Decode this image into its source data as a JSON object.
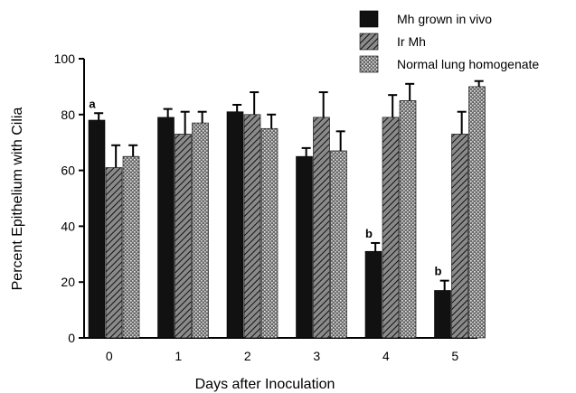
{
  "chart_data": {
    "type": "bar",
    "xlabel": "Days after Inoculation",
    "ylabel": "Percent Epithelium with Cilia",
    "ylim": [
      0,
      100
    ],
    "yticks": [
      "0",
      "20",
      "40",
      "60",
      "80",
      "100"
    ],
    "categories": [
      "0",
      "1",
      "2",
      "3",
      "4",
      "5"
    ],
    "grid": false,
    "legend_position": "top-right",
    "series": [
      {
        "name": " Mh grown in vivo",
        "pattern": "solid",
        "color": "#111111",
        "values": [
          78,
          79,
          81,
          65,
          31,
          17
        ],
        "errors": [
          2.5,
          3,
          2.5,
          3,
          3,
          3.5
        ]
      },
      {
        "name": "Ir Mh",
        "pattern": "diagonal-hatch",
        "color": "#333333",
        "values": [
          61,
          73,
          80,
          79,
          79,
          73
        ],
        "errors": [
          8,
          8,
          8,
          9,
          8,
          8
        ]
      },
      {
        "name": "Normal lung homogenate",
        "pattern": "stipple",
        "color": "#555555",
        "values": [
          65,
          77,
          75,
          67,
          85,
          90
        ],
        "errors": [
          4,
          4,
          5,
          7,
          6,
          2
        ]
      }
    ],
    "annotations": [
      {
        "text": "a",
        "category": "0",
        "series": 0
      },
      {
        "text": "b",
        "category": "4",
        "series": 0
      },
      {
        "text": "b",
        "category": "5",
        "series": 0
      }
    ]
  }
}
